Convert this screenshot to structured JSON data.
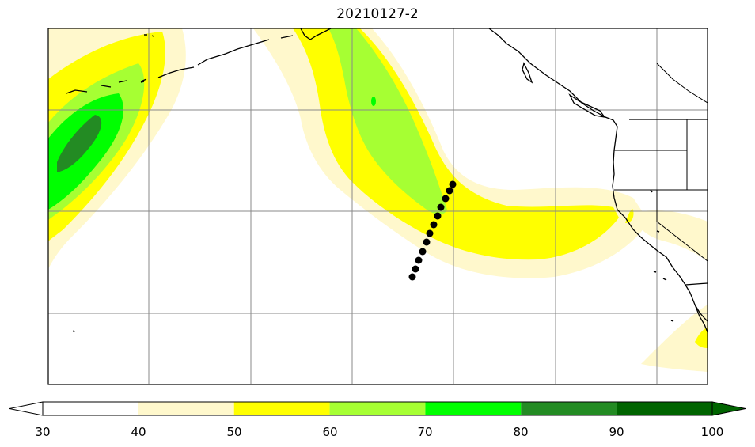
{
  "title": "20210127-2",
  "colorbar": {
    "ticks": [
      "30",
      "40",
      "50",
      "60",
      "70",
      "80",
      "90",
      "100"
    ],
    "levels": [
      {
        "from": 30,
        "to": 40,
        "color": "#ffffff"
      },
      {
        "from": 40,
        "to": 50,
        "color": "#fff8cc"
      },
      {
        "from": 50,
        "to": 60,
        "color": "#ffff00"
      },
      {
        "from": 60,
        "to": 70,
        "color": "#a6ff33"
      },
      {
        "from": 70,
        "to": 80,
        "color": "#00ff00"
      },
      {
        "from": 80,
        "to": 90,
        "color": "#238b23"
      },
      {
        "from": 90,
        "to": 100,
        "color": "#006400"
      }
    ],
    "extend": "both"
  },
  "map": {
    "coastline_color": "#000000",
    "grid_color": "#888888",
    "track_marker_color": "#000000",
    "track_point_count": 12
  }
}
